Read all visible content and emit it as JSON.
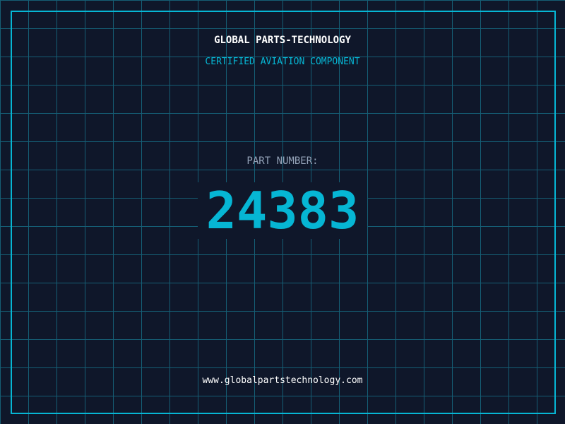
{
  "header": {
    "company": "GLOBAL PARTS-TECHNOLOGY",
    "subtitle": "CERTIFIED AVIATION COMPONENT"
  },
  "part": {
    "label": "PART NUMBER:",
    "number": "24383"
  },
  "footer": {
    "url": "www.globalpartstechnology.com"
  },
  "colors": {
    "background": "#0f172a",
    "accent": "#06b6d4",
    "grid": "#155e75"
  }
}
